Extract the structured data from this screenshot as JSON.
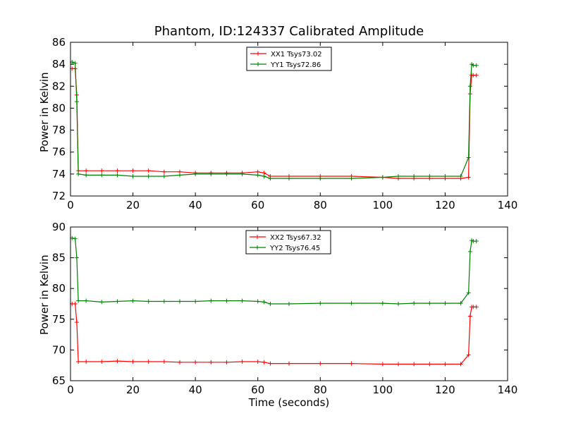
{
  "figure": {
    "title": "Phantom, ID:124337 Calibrated Amplitude",
    "xlabel": "Time (seconds)"
  },
  "chart_data": [
    {
      "type": "line",
      "title": "Phantom, ID:124337 Calibrated Amplitude",
      "xlabel": "",
      "ylabel": "Power in Kelvin",
      "xlim": [
        0,
        140
      ],
      "ylim": [
        72,
        86
      ],
      "xticks": [
        0,
        20,
        40,
        60,
        80,
        100,
        120,
        140
      ],
      "yticks": [
        72,
        74,
        76,
        78,
        80,
        82,
        84,
        86
      ],
      "grid": false,
      "legend_position": "upper-center",
      "series": [
        {
          "name": "XX1 Tsys73.02",
          "color": "#ff0000",
          "marker": "+",
          "x": [
            0.5,
            1.5,
            2.0,
            2.5,
            5,
            10,
            15,
            20,
            25,
            30,
            35,
            40,
            45,
            50,
            55,
            60,
            62,
            64,
            70,
            80,
            90,
            100,
            105,
            110,
            115,
            120,
            125,
            127.5,
            128,
            128.5,
            129,
            130
          ],
          "y": [
            83.6,
            83.6,
            81.2,
            74.3,
            74.3,
            74.3,
            74.3,
            74.3,
            74.3,
            74.2,
            74.2,
            74.1,
            74.1,
            74.1,
            74.1,
            74.2,
            74.1,
            73.8,
            73.8,
            73.8,
            73.8,
            73.7,
            73.6,
            73.6,
            73.6,
            73.6,
            73.6,
            73.7,
            81.3,
            83.0,
            83.0,
            83.0
          ]
        },
        {
          "name": "YY1 Tsys72.86",
          "color": "#008000",
          "marker": "+",
          "x": [
            0.5,
            1.5,
            2.0,
            2.5,
            5,
            10,
            15,
            20,
            25,
            30,
            35,
            40,
            45,
            50,
            55,
            60,
            62,
            64,
            70,
            80,
            90,
            100,
            105,
            110,
            115,
            120,
            125,
            127.5,
            128,
            128.5,
            129,
            130
          ],
          "y": [
            84.2,
            84.1,
            80.6,
            74.0,
            73.9,
            73.9,
            73.9,
            73.8,
            73.8,
            73.8,
            73.9,
            74.0,
            74.0,
            74.0,
            74.0,
            73.9,
            73.8,
            73.6,
            73.6,
            73.6,
            73.6,
            73.7,
            73.8,
            73.8,
            73.8,
            73.8,
            73.8,
            75.5,
            82.0,
            84.0,
            83.9,
            83.9
          ]
        }
      ]
    },
    {
      "type": "line",
      "title": "",
      "xlabel": "Time (seconds)",
      "ylabel": "Power in Kelvin",
      "xlim": [
        0,
        140
      ],
      "ylim": [
        65,
        90
      ],
      "xticks": [
        0,
        20,
        40,
        60,
        80,
        100,
        120,
        140
      ],
      "yticks": [
        65,
        70,
        75,
        80,
        85,
        90
      ],
      "grid": false,
      "legend_position": "upper-center",
      "series": [
        {
          "name": "XX2 Tsys67.32",
          "color": "#ff0000",
          "marker": "+",
          "x": [
            0.5,
            1.5,
            2.0,
            2.5,
            5,
            10,
            15,
            20,
            25,
            30,
            35,
            40,
            45,
            50,
            55,
            60,
            62,
            64,
            70,
            80,
            90,
            100,
            105,
            110,
            115,
            120,
            125,
            127.5,
            128,
            128.5,
            129,
            130
          ],
          "y": [
            77.5,
            77.5,
            74.5,
            68.1,
            68.1,
            68.1,
            68.2,
            68.1,
            68.1,
            68.1,
            68.0,
            68.0,
            68.0,
            68.0,
            68.1,
            68.1,
            68.0,
            67.8,
            67.8,
            67.8,
            67.8,
            67.7,
            67.7,
            67.7,
            67.7,
            67.7,
            67.7,
            69.2,
            75.5,
            77.0,
            77.0,
            77.0
          ]
        },
        {
          "name": "YY2 Tsys76.45",
          "color": "#008000",
          "marker": "+",
          "x": [
            0.5,
            1.5,
            2.0,
            2.5,
            5,
            10,
            15,
            20,
            25,
            30,
            35,
            40,
            45,
            50,
            55,
            60,
            62,
            64,
            70,
            80,
            90,
            100,
            105,
            110,
            115,
            120,
            125,
            127.5,
            128,
            128.5,
            129,
            130
          ],
          "y": [
            88.2,
            88.1,
            85.0,
            78.0,
            78.0,
            77.8,
            77.9,
            78.0,
            77.9,
            77.9,
            77.9,
            77.9,
            78.0,
            78.0,
            78.0,
            77.9,
            77.8,
            77.5,
            77.5,
            77.6,
            77.6,
            77.6,
            77.5,
            77.6,
            77.6,
            77.6,
            77.6,
            79.3,
            86.0,
            87.8,
            87.7,
            87.7
          ]
        }
      ]
    }
  ]
}
